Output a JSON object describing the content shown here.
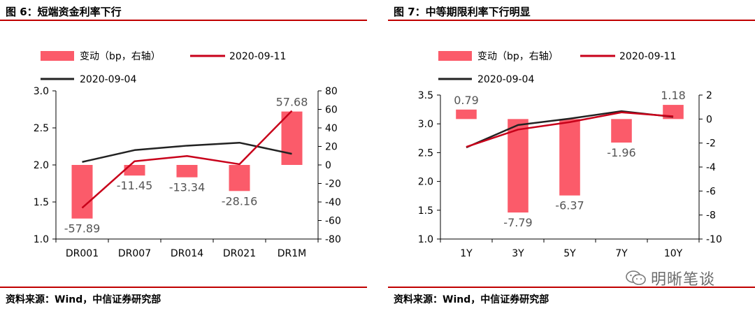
{
  "charts": [
    {
      "title": "图 6：短端资金利率下行",
      "source": "资料来源：Wind，中信证券研究部",
      "legend": {
        "bar": "变动（bp，右轴）",
        "line_a": "2020-09-11",
        "line_b": "2020-09-04"
      },
      "colors": {
        "bar": "#fb5b6a",
        "line_a": "#c8001a",
        "line_b": "#222222"
      },
      "chart_data": {
        "type": "bar",
        "categories": [
          "DR001",
          "DR007",
          "DR014",
          "DR021",
          "DR1M"
        ],
        "bar_values": [
          -57.89,
          -11.45,
          -13.34,
          -28.16,
          57.68
        ],
        "bar_labels": [
          "-57.89",
          "-11.45",
          "-13.34",
          "-28.16",
          "57.68"
        ],
        "series": [
          {
            "name": "2020-09-11",
            "values": [
              1.42,
              2.05,
              2.12,
              2.01,
              2.73
            ]
          },
          {
            "name": "2020-09-04",
            "values": [
              2.04,
              2.2,
              2.26,
              2.3,
              2.15
            ]
          }
        ],
        "ylim_left": [
          1.0,
          3.0
        ],
        "yticks_left": [
          "1.0",
          "1.5",
          "2.0",
          "2.5",
          "3.0"
        ],
        "ylim_right": [
          -80,
          80
        ],
        "yticks_right": [
          "-80",
          "-60",
          "-40",
          "-20",
          "0",
          "20",
          "40",
          "60",
          "80"
        ]
      }
    },
    {
      "title": "图 7：中等期限利率下行明显",
      "source": "资料来源：Wind，中信证券研究部",
      "legend": {
        "bar": "变动（bp，右轴）",
        "line_a": "2020-09-11",
        "line_b": "2020-09-04"
      },
      "colors": {
        "bar": "#fb5b6a",
        "line_a": "#c8001a",
        "line_b": "#222222"
      },
      "chart_data": {
        "type": "bar",
        "categories": [
          "1Y",
          "3Y",
          "5Y",
          "7Y",
          "10Y"
        ],
        "bar_values": [
          0.79,
          -7.79,
          -6.37,
          -1.96,
          1.18
        ],
        "bar_labels": [
          "0.79",
          "-7.79",
          "-6.37",
          "-1.96",
          "1.18"
        ],
        "series": [
          {
            "name": "2020-09-11",
            "values": [
              2.6,
              2.9,
              3.03,
              3.2,
              3.13
            ]
          },
          {
            "name": "2020-09-04",
            "values": [
              2.59,
              2.98,
              3.09,
              3.22,
              3.12
            ]
          }
        ],
        "ylim_left": [
          1.0,
          3.5
        ],
        "yticks_left": [
          "1.0",
          "1.5",
          "2.0",
          "2.5",
          "3.0",
          "3.5"
        ],
        "ylim_right": [
          -10,
          2
        ],
        "yticks_right": [
          "-10",
          "-8",
          "-6",
          "-4",
          "-2",
          "0",
          "2"
        ]
      }
    }
  ],
  "watermark": {
    "text": "明晰笔谈",
    "icon": "wechat-logo-icon"
  }
}
